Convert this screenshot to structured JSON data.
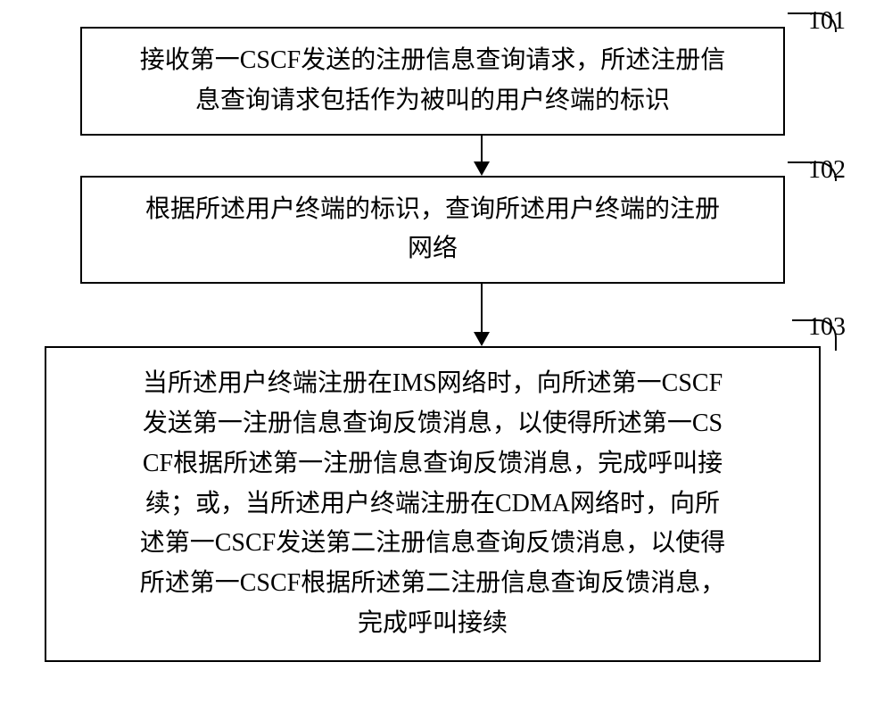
{
  "flowchart": {
    "type": "flowchart",
    "background_color": "#ffffff",
    "border_color": "#000000",
    "text_color": "#000000",
    "font_family": "SimSun",
    "font_size": 28,
    "border_width": 2,
    "nodes": [
      {
        "id": "step1",
        "label": "101",
        "text_line1": "接收第一CSCF发送的注册信息查询请求，所述注册信",
        "text_line2": "息查询请求包括作为被叫的用户终端的标识"
      },
      {
        "id": "step2",
        "label": "102",
        "text_line1": "根据所述用户终端的标识，查询所述用户终端的注册",
        "text_line2": "网络"
      },
      {
        "id": "step3",
        "label": "103",
        "text_line1": "当所述用户终端注册在IMS网络时，向所述第一CSCF",
        "text_line2": "发送第一注册信息查询反馈消息，以使得所述第一CS",
        "text_line3": "CF根据所述第一注册信息查询反馈消息，完成呼叫接",
        "text_line4": "续；或，当所述用户终端注册在CDMA网络时，向所",
        "text_line5": "述第一CSCF发送第二注册信息查询反馈消息，以使得",
        "text_line6": "所述第一CSCF根据所述第二注册信息查询反馈消息，",
        "text_line7": "完成呼叫接续"
      }
    ],
    "edges": [
      {
        "from": "step1",
        "to": "step2"
      },
      {
        "from": "step2",
        "to": "step3"
      }
    ],
    "arrow_style": {
      "line_width": 2,
      "head_width": 18,
      "head_height": 16,
      "color": "#000000"
    }
  }
}
